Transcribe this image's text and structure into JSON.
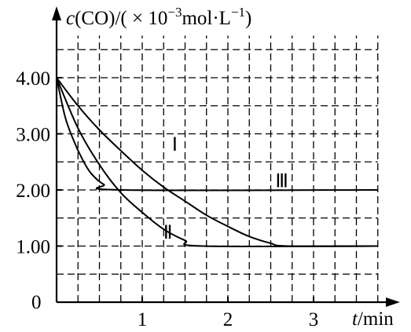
{
  "chart_data": {
    "type": "line",
    "ylabel": "c(CO)/( × 10⁻³mol·L⁻¹)",
    "ylabel_parts": {
      "var": "c",
      "rest": "(CO)/( × 10",
      "exp1": "−3",
      "unit": "mol·L",
      "exp2": "−1",
      "close": ")"
    },
    "xlabel": "t/min",
    "xlabel_parts": {
      "var": "t",
      "rest": "/min"
    },
    "xlim": [
      0,
      3.75
    ],
    "ylim": [
      0,
      4.75
    ],
    "origin_label": "0",
    "x_ticks": [
      {
        "value": 1,
        "label": "1"
      },
      {
        "value": 2,
        "label": "2"
      },
      {
        "value": 3,
        "label": "3"
      }
    ],
    "y_ticks": [
      {
        "value": 1,
        "label": "1.00"
      },
      {
        "value": 2,
        "label": "2.00"
      },
      {
        "value": 3,
        "label": "3.00"
      },
      {
        "value": 4,
        "label": "4.00"
      }
    ],
    "grid": true,
    "grid_step": {
      "x": 0.25,
      "y": 0.5
    },
    "series": [
      {
        "name": "Ⅰ",
        "label_at": {
          "x": 1.38,
          "y": 2.7
        },
        "points": [
          [
            0,
            4
          ],
          [
            0.25,
            3.5
          ],
          [
            0.5,
            3.07
          ],
          [
            0.75,
            2.7
          ],
          [
            1,
            2.35
          ],
          [
            1.25,
            2.05
          ],
          [
            1.5,
            1.8
          ],
          [
            1.75,
            1.55
          ],
          [
            2,
            1.35
          ],
          [
            2.25,
            1.17
          ],
          [
            2.5,
            1.05
          ],
          [
            2.7,
            1
          ],
          [
            3.75,
            1
          ]
        ]
      },
      {
        "name": "Ⅱ",
        "label_at": {
          "x": 1.3,
          "y": 1.13
        },
        "points": [
          [
            0,
            4
          ],
          [
            0.25,
            3.1
          ],
          [
            0.5,
            2.45
          ],
          [
            0.75,
            1.95
          ],
          [
            1,
            1.6
          ],
          [
            1.25,
            1.3
          ],
          [
            1.5,
            1.1
          ],
          [
            1.7,
            1
          ],
          [
            3.75,
            1
          ]
        ]
      },
      {
        "name": "Ⅲ",
        "label_at": {
          "x": 2.63,
          "y": 2.05
        },
        "points": [
          [
            0,
            4
          ],
          [
            0.1,
            3.3
          ],
          [
            0.2,
            2.88
          ],
          [
            0.3,
            2.55
          ],
          [
            0.4,
            2.3
          ],
          [
            0.55,
            2.1
          ],
          [
            0.75,
            2
          ],
          [
            3.75,
            2
          ]
        ]
      }
    ]
  }
}
